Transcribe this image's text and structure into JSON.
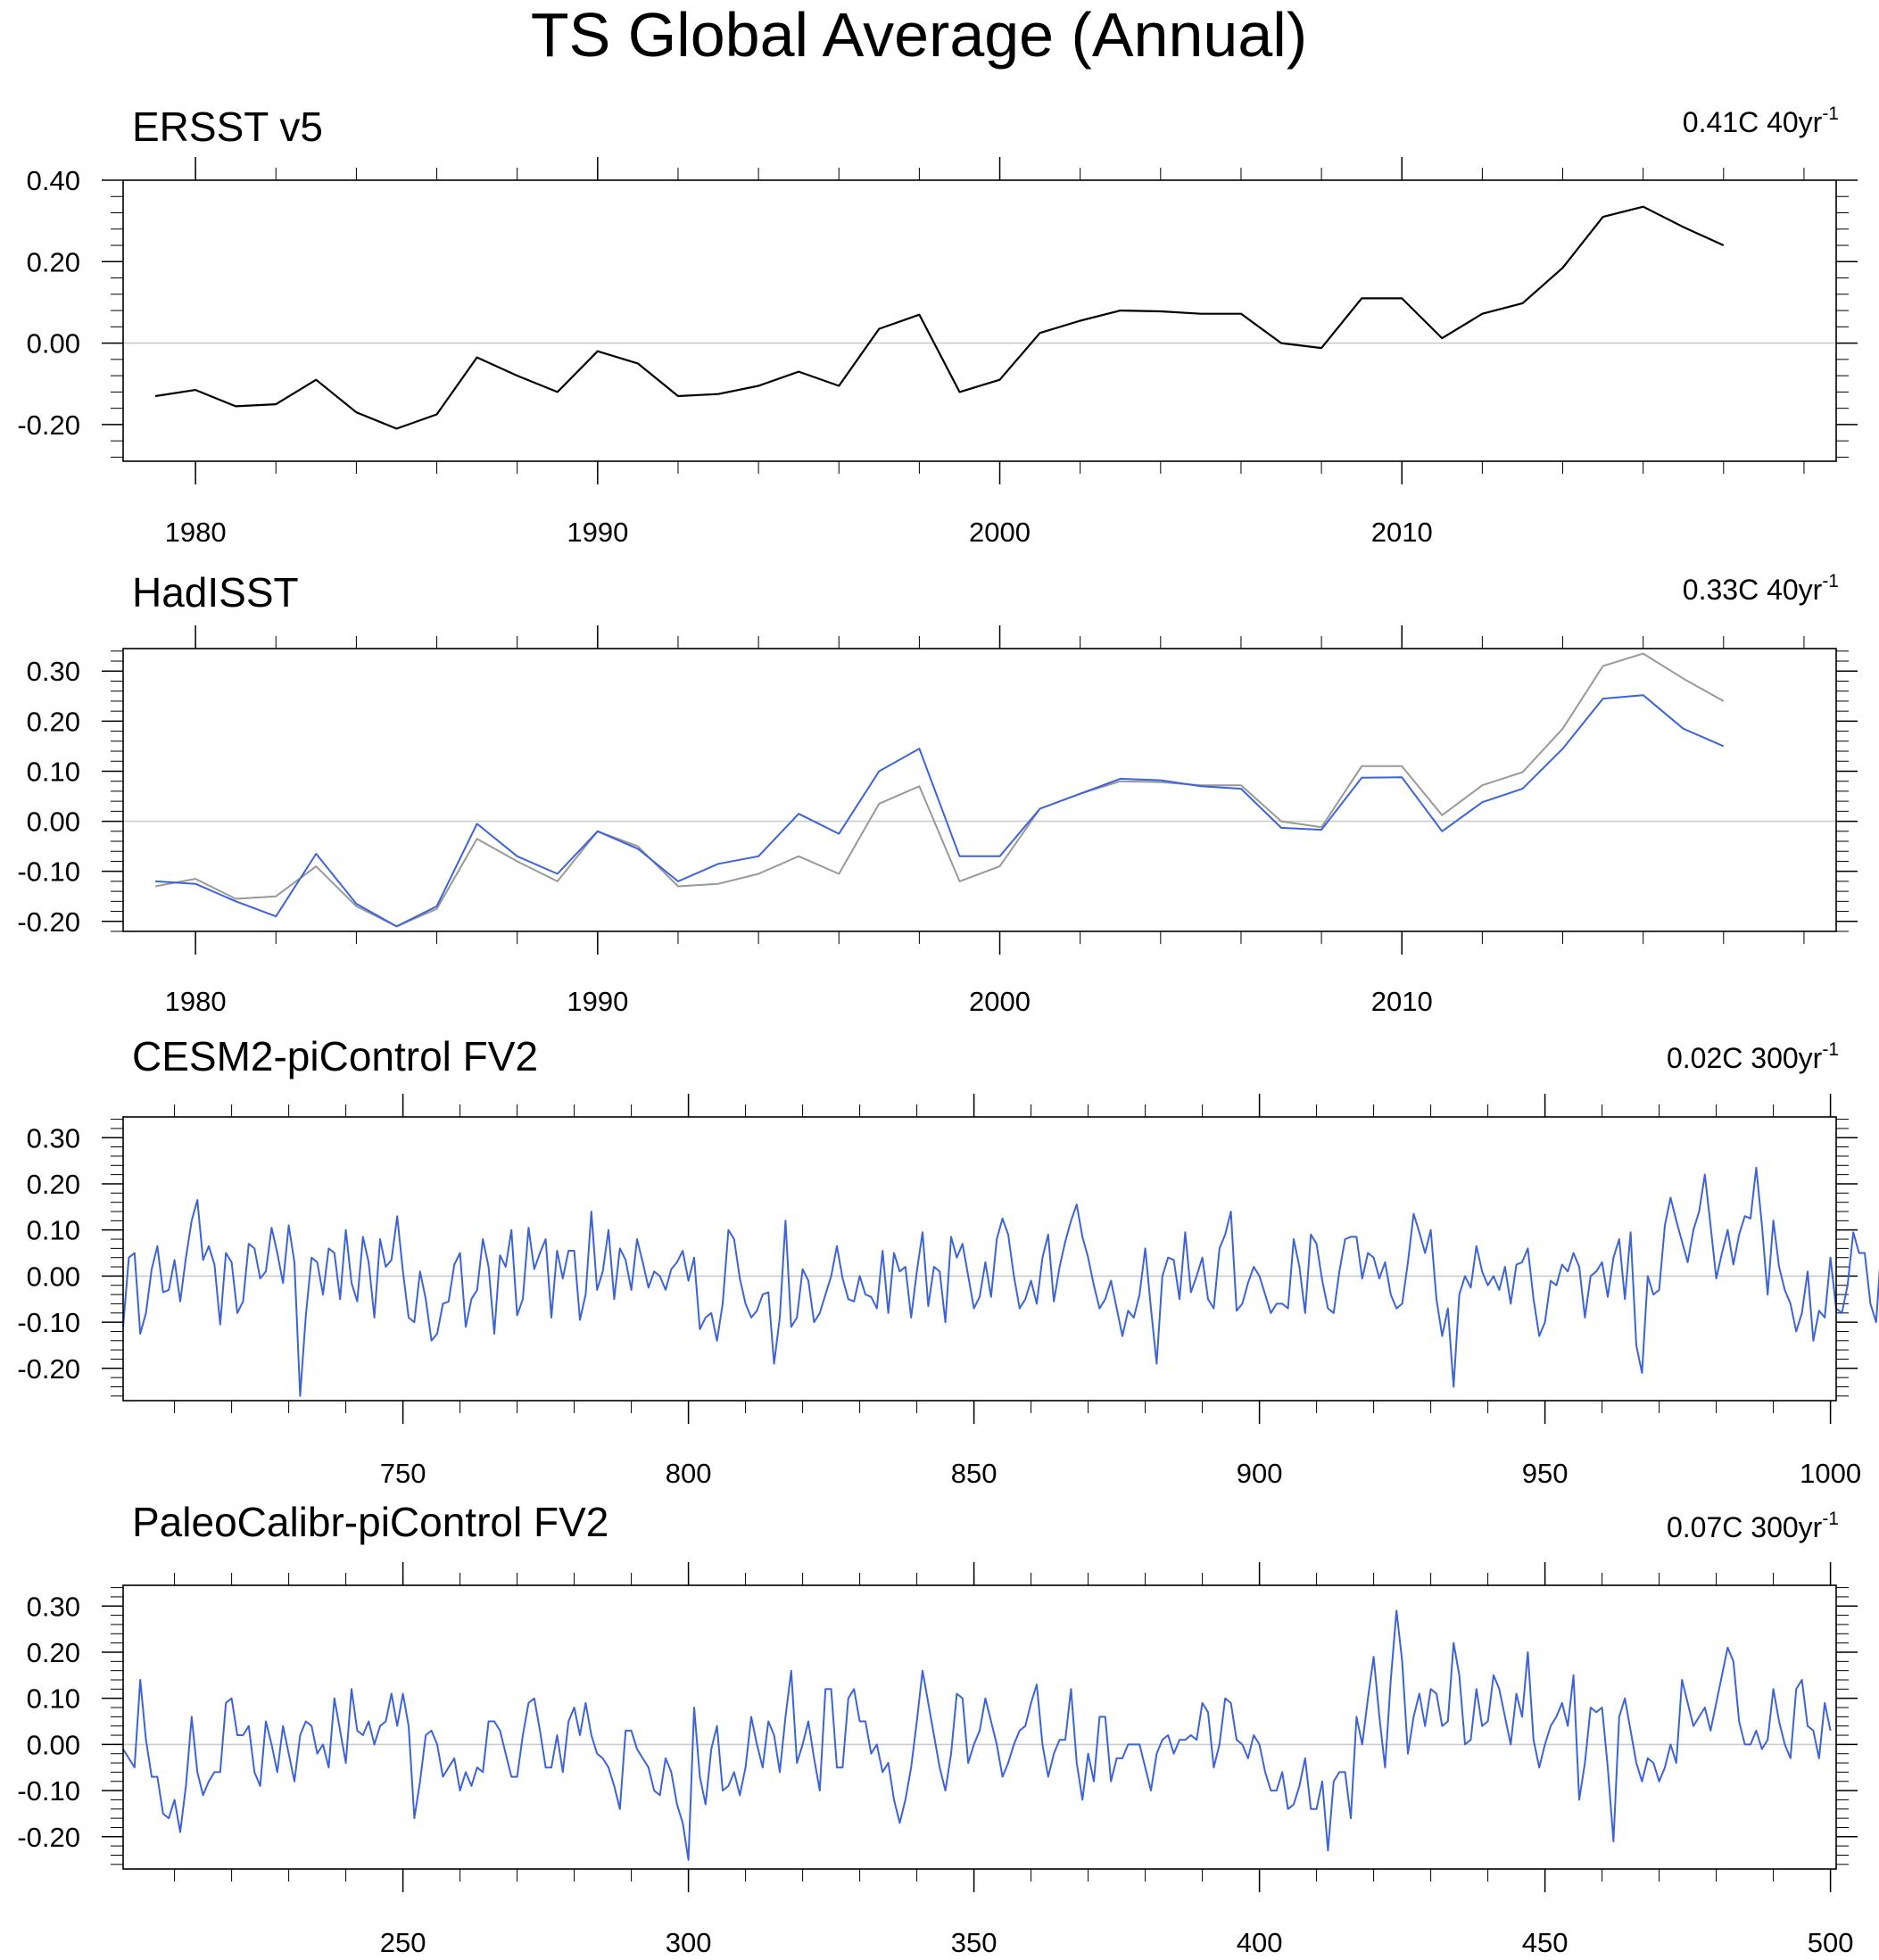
{
  "title": "TS Global Average (Annual)",
  "colors": {
    "observed": "#000000",
    "ersst_ref": "#999999",
    "model": "#3d64d6",
    "zero_line": "#cccccc",
    "axis": "#000000"
  },
  "chart_data": [
    {
      "type": "line",
      "title": "ERSST v5",
      "trend_value": "0.41C 40yr",
      "trend_exp": "-1",
      "xlim": [
        1978.2,
        2020.8
      ],
      "ylim": [
        -0.29,
        0.4
      ],
      "xticks": [
        1980,
        1990,
        2000,
        2010
      ],
      "yticks": [
        "0.40",
        "0.20",
        "0.00",
        "-0.20"
      ],
      "ytick_values": [
        0.4,
        0.2,
        0.0,
        -0.2
      ],
      "y_minor_step": 0.04,
      "x_minor_step": 2,
      "zero_line": true,
      "series": [
        {
          "key": "observed",
          "x_start": 1979,
          "values": [
            -0.13,
            -0.115,
            -0.155,
            -0.15,
            -0.09,
            -0.17,
            -0.21,
            -0.175,
            -0.035,
            -0.08,
            -0.12,
            -0.02,
            -0.05,
            -0.13,
            -0.125,
            -0.105,
            -0.07,
            -0.105,
            0.035,
            0.07,
            -0.12,
            -0.09,
            0.025,
            0.055,
            0.08,
            0.078,
            0.072,
            0.072,
            0.0,
            -0.012,
            0.11,
            0.11,
            0.012,
            0.072,
            0.098,
            0.185,
            0.31,
            0.335,
            0.285,
            0.24
          ]
        }
      ]
    },
    {
      "type": "line",
      "title": "HadISST",
      "trend_value": "0.33C 40yr",
      "trend_exp": "-1",
      "xlim": [
        1978.2,
        2020.8
      ],
      "ylim": [
        -0.22,
        0.345
      ],
      "xticks": [
        1980,
        1990,
        2000,
        2010
      ],
      "yticks": [
        "0.30",
        "0.20",
        "0.10",
        "0.00",
        "-0.10",
        "-0.20"
      ],
      "ytick_values": [
        0.3,
        0.2,
        0.1,
        0.0,
        -0.1,
        -0.2
      ],
      "y_minor_step": 0.02,
      "x_minor_step": 2,
      "zero_line": true,
      "series": [
        {
          "key": "ersst_ref",
          "x_start": 1979,
          "values": [
            -0.13,
            -0.115,
            -0.155,
            -0.15,
            -0.09,
            -0.17,
            -0.21,
            -0.175,
            -0.035,
            -0.08,
            -0.12,
            -0.02,
            -0.05,
            -0.13,
            -0.125,
            -0.105,
            -0.07,
            -0.105,
            0.035,
            0.07,
            -0.12,
            -0.09,
            0.025,
            0.055,
            0.08,
            0.078,
            0.072,
            0.072,
            0.0,
            -0.012,
            0.11,
            0.11,
            0.012,
            0.072,
            0.098,
            0.185,
            0.31,
            0.335,
            0.285,
            0.24
          ]
        },
        {
          "key": "model",
          "x_start": 1979,
          "values": [
            -0.12,
            -0.125,
            -0.16,
            -0.19,
            -0.065,
            -0.165,
            -0.21,
            -0.17,
            -0.005,
            -0.07,
            -0.105,
            -0.02,
            -0.055,
            -0.12,
            -0.085,
            -0.07,
            0.015,
            -0.025,
            0.1,
            0.145,
            -0.07,
            -0.07,
            0.025,
            0.055,
            0.085,
            0.082,
            0.07,
            0.065,
            -0.013,
            -0.017,
            0.087,
            0.088,
            -0.02,
            0.038,
            0.065,
            0.145,
            0.245,
            0.252,
            0.185,
            0.15
          ]
        }
      ]
    },
    {
      "type": "line",
      "title": "CESM2-piControl FV2",
      "trend_value": "0.02C 300yr",
      "trend_exp": "-1",
      "xlim": [
        701,
        1001
      ],
      "ylim": [
        -0.27,
        0.345
      ],
      "xticks": [
        750,
        800,
        850,
        900,
        950,
        1000
      ],
      "yticks": [
        "0.30",
        "0.20",
        "0.10",
        "0.00",
        "-0.10",
        "-0.20"
      ],
      "ytick_values": [
        0.3,
        0.2,
        0.1,
        0.0,
        -0.1,
        -0.2
      ],
      "y_minor_step": 0.02,
      "x_minor_step": 10,
      "zero_line": true,
      "series": [
        {
          "key": "model",
          "x_start": 701,
          "values": [
            -0.11,
            0.04,
            0.05,
            -0.125,
            -0.08,
            0.015,
            0.065,
            -0.035,
            -0.03,
            0.035,
            -0.055,
            0.04,
            0.12,
            0.165,
            0.035,
            0.065,
            0.025,
            -0.105,
            0.05,
            0.03,
            -0.08,
            -0.055,
            0.07,
            0.06,
            -0.005,
            0.01,
            0.105,
            0.05,
            -0.015,
            0.11,
            0.03,
            -0.26,
            -0.085,
            0.04,
            0.03,
            -0.04,
            0.06,
            0.05,
            -0.05,
            0.1,
            -0.015,
            -0.055,
            0.085,
            0.03,
            -0.09,
            0.08,
            0.02,
            0.035,
            0.13,
            0.01,
            -0.09,
            -0.1,
            0.01,
            -0.05,
            -0.14,
            -0.125,
            -0.06,
            -0.055,
            0.025,
            0.05,
            -0.11,
            -0.05,
            -0.03,
            0.08,
            0.02,
            -0.125,
            0.045,
            0.02,
            0.1,
            -0.085,
            -0.05,
            0.105,
            0.015,
            0.05,
            0.08,
            -0.09,
            0.055,
            -0.005,
            0.055,
            0.055,
            -0.095,
            -0.04,
            0.14,
            -0.03,
            0.01,
            0.1,
            -0.05,
            0.06,
            0.035,
            -0.03,
            0.08,
            0.03,
            -0.025,
            0.01,
            0.0,
            -0.03,
            0.015,
            0.03,
            0.055,
            -0.01,
            0.04,
            -0.115,
            -0.09,
            -0.08,
            -0.14,
            -0.06,
            0.1,
            0.08,
            -0.005,
            -0.06,
            -0.09,
            -0.075,
            -0.04,
            -0.035,
            -0.19,
            -0.09,
            0.12,
            -0.11,
            -0.09,
            0.015,
            -0.01,
            -0.1,
            -0.08,
            -0.04,
            0.0,
            0.065,
            -0.005,
            -0.05,
            -0.055,
            0.0,
            -0.04,
            -0.045,
            -0.07,
            0.055,
            -0.08,
            0.05,
            0.01,
            0.02,
            -0.09,
            0.01,
            0.095,
            -0.065,
            0.02,
            0.01,
            -0.1,
            0.085,
            0.04,
            0.07,
            0.0,
            -0.07,
            -0.045,
            0.03,
            -0.045,
            0.08,
            0.125,
            0.09,
            0.0,
            -0.07,
            -0.05,
            -0.01,
            -0.06,
            0.04,
            0.09,
            -0.055,
            0.02,
            0.075,
            0.12,
            0.155,
            0.085,
            0.04,
            -0.02,
            -0.07,
            -0.05,
            -0.01,
            -0.07,
            -0.13,
            -0.075,
            -0.09,
            -0.04,
            0.06,
            -0.07,
            -0.19,
            0.0,
            0.04,
            0.035,
            -0.05,
            0.095,
            -0.035,
            0.0,
            0.04,
            -0.05,
            -0.07,
            0.06,
            0.09,
            0.14,
            -0.075,
            -0.06,
            -0.015,
            0.02,
            0.0,
            -0.04,
            -0.08,
            -0.06,
            -0.06,
            -0.07,
            0.08,
            0.02,
            -0.08,
            0.09,
            0.07,
            -0.01,
            -0.07,
            -0.08,
            0.01,
            0.08,
            0.085,
            0.085,
            -0.005,
            0.05,
            0.04,
            -0.005,
            0.03,
            -0.04,
            -0.07,
            -0.06,
            0.03,
            0.135,
            0.095,
            0.05,
            0.1,
            -0.05,
            -0.13,
            -0.07,
            -0.24,
            -0.04,
            0.0,
            -0.025,
            0.065,
            0.01,
            -0.02,
            0.0,
            -0.03,
            0.02,
            -0.06,
            0.025,
            0.03,
            0.06,
            -0.05,
            -0.13,
            -0.1,
            -0.01,
            -0.02,
            0.025,
            0.01,
            0.05,
            0.02,
            -0.09,
            0.0,
            0.01,
            0.03,
            -0.045,
            0.04,
            0.08,
            -0.05,
            0.095,
            -0.15,
            -0.21,
            0.0,
            -0.04,
            -0.03,
            0.11,
            0.17,
            0.12,
            0.075,
            0.03,
            0.1,
            0.14,
            0.22,
            0.11,
            -0.005,
            0.05,
            0.1,
            0.025,
            0.09,
            0.13,
            0.125,
            0.235,
            0.11,
            -0.04,
            0.12,
            0.02,
            -0.03,
            -0.06,
            -0.12,
            -0.08,
            0.01,
            -0.14,
            -0.075,
            -0.09,
            0.04,
            -0.07,
            -0.08,
            -0.02,
            0.095,
            0.05,
            0.05,
            -0.06,
            -0.1,
            0.08,
            -0.04,
            -0.1,
            0.075,
            0.08,
            -0.105
          ]
        }
      ]
    },
    {
      "type": "line",
      "title": "PaleoCalibr-piControl FV2",
      "trend_value": "0.07C 300yr",
      "trend_exp": "-1",
      "xlim": [
        201,
        501
      ],
      "ylim": [
        -0.27,
        0.345
      ],
      "xticks": [
        250,
        300,
        350,
        400,
        450,
        500
      ],
      "yticks": [
        "0.30",
        "0.20",
        "0.10",
        "0.00",
        "-0.10",
        "-0.20"
      ],
      "ytick_values": [
        0.3,
        0.2,
        0.1,
        0.0,
        -0.1,
        -0.2
      ],
      "y_minor_step": 0.02,
      "x_minor_step": 10,
      "zero_line": true,
      "series": [
        {
          "key": "model",
          "x_start": 201,
          "values": [
            -0.01,
            -0.03,
            -0.05,
            0.14,
            0.01,
            -0.07,
            -0.07,
            -0.15,
            -0.16,
            -0.12,
            -0.19,
            -0.09,
            0.06,
            -0.06,
            -0.11,
            -0.08,
            -0.06,
            -0.06,
            0.09,
            0.1,
            0.02,
            0.02,
            0.04,
            -0.06,
            -0.09,
            0.05,
            0.0,
            -0.06,
            0.04,
            -0.02,
            -0.08,
            0.02,
            0.05,
            0.04,
            -0.02,
            0.0,
            -0.05,
            0.1,
            0.03,
            -0.04,
            0.12,
            0.03,
            0.02,
            0.05,
            0.0,
            0.04,
            0.05,
            0.11,
            0.04,
            0.11,
            0.04,
            -0.16,
            -0.08,
            0.02,
            0.03,
            0.0,
            -0.07,
            -0.05,
            -0.03,
            -0.1,
            -0.06,
            -0.09,
            -0.05,
            -0.06,
            0.05,
            0.05,
            0.03,
            -0.02,
            -0.07,
            -0.07,
            0.02,
            0.09,
            0.1,
            0.03,
            -0.05,
            -0.05,
            0.02,
            -0.06,
            0.05,
            0.08,
            0.02,
            0.09,
            0.02,
            -0.02,
            -0.03,
            -0.05,
            -0.09,
            -0.14,
            0.03,
            0.03,
            -0.01,
            -0.03,
            -0.05,
            -0.1,
            -0.11,
            -0.03,
            -0.06,
            -0.13,
            -0.17,
            -0.25,
            0.08,
            -0.07,
            -0.13,
            -0.01,
            0.04,
            -0.1,
            -0.09,
            -0.06,
            -0.11,
            -0.05,
            0.06,
            0.0,
            -0.05,
            0.05,
            0.02,
            -0.06,
            0.06,
            0.16,
            -0.04,
            0.0,
            0.05,
            -0.03,
            -0.1,
            0.12,
            0.12,
            -0.05,
            -0.05,
            0.1,
            0.12,
            0.05,
            0.05,
            -0.02,
            0.0,
            -0.06,
            -0.04,
            -0.12,
            -0.17,
            -0.12,
            -0.05,
            0.05,
            0.16,
            0.09,
            0.02,
            -0.05,
            -0.1,
            -0.02,
            0.11,
            0.1,
            -0.04,
            0.0,
            0.03,
            0.1,
            0.05,
            0.0,
            -0.07,
            -0.04,
            0.0,
            0.03,
            0.04,
            0.09,
            0.13,
            0.0,
            -0.07,
            -0.02,
            0.01,
            0.01,
            0.12,
            -0.04,
            -0.12,
            -0.02,
            -0.08,
            0.06,
            0.06,
            -0.08,
            -0.03,
            -0.03,
            0.0,
            0.0,
            0.0,
            -0.05,
            -0.1,
            -0.02,
            0.01,
            0.02,
            -0.02,
            0.01,
            0.01,
            0.02,
            0.01,
            0.09,
            0.07,
            -0.05,
            0.0,
            0.1,
            0.09,
            0.01,
            0.0,
            -0.03,
            0.02,
            0.0,
            -0.06,
            -0.1,
            -0.1,
            -0.06,
            -0.14,
            -0.13,
            -0.09,
            -0.03,
            -0.14,
            -0.14,
            -0.08,
            -0.23,
            -0.08,
            -0.06,
            -0.06,
            -0.16,
            0.06,
            0.0,
            0.1,
            0.19,
            0.06,
            -0.05,
            0.14,
            0.29,
            0.18,
            -0.02,
            0.06,
            0.11,
            0.04,
            0.12,
            0.11,
            0.04,
            0.05,
            0.22,
            0.15,
            0.0,
            0.01,
            0.12,
            0.04,
            0.05,
            0.15,
            0.12,
            0.06,
            0.0,
            0.11,
            0.06,
            0.2,
            0.01,
            -0.05,
            0.0,
            0.04,
            0.06,
            0.09,
            0.04,
            0.15,
            -0.12,
            -0.04,
            0.08,
            0.07,
            0.08,
            -0.05,
            -0.21,
            0.06,
            0.1,
            0.03,
            -0.04,
            -0.08,
            -0.03,
            -0.04,
            -0.08,
            -0.05,
            0.0,
            -0.04,
            0.14,
            0.09,
            0.04,
            0.06,
            0.08,
            0.03,
            0.09,
            0.15,
            0.21,
            0.18,
            0.05,
            0.0,
            0.0,
            0.03,
            -0.01,
            0.01,
            0.12,
            0.05,
            0.0,
            -0.03,
            0.12,
            0.14,
            0.04,
            0.03,
            -0.03,
            0.09,
            0.03
          ]
        }
      ]
    }
  ]
}
